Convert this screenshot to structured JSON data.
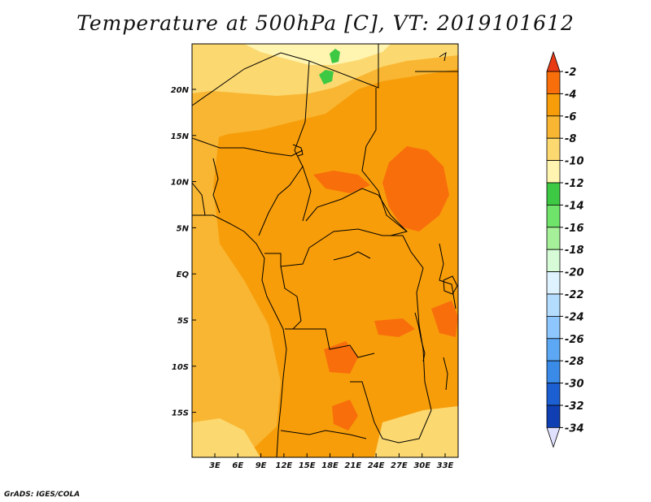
{
  "title": "Temperature at 500hPa [C], VT: 2019101612",
  "credit": "GrADS: IGES/COLA",
  "map": {
    "lon_labels": [
      "3E",
      "6E",
      "9E",
      "12E",
      "15E",
      "18E",
      "21E",
      "24E",
      "27E",
      "30E",
      "33E"
    ],
    "lat_labels": [
      "20N",
      "15N",
      "10N",
      "5N",
      "EQ",
      "5S",
      "10S",
      "15S"
    ]
  },
  "colorbar": {
    "labels": [
      "-2",
      "-4",
      "-6",
      "-8",
      "-10",
      "-12",
      "-14",
      "-16",
      "-18",
      "-20",
      "-22",
      "-24",
      "-26",
      "-28",
      "-30",
      "-32",
      "-34"
    ],
    "colors": [
      "#e83a14",
      "#f86e0b",
      "#f79d0a",
      "#f9b632",
      "#fcd870",
      "#fff5b0",
      "#3dc944",
      "#6fe36a",
      "#a6f09a",
      "#d7fbd6",
      "#dff2ff",
      "#b3dcff",
      "#8ec7ff",
      "#5ca8f5",
      "#3a8ae8",
      "#1b5fd2",
      "#0f3fb2",
      "#071b80",
      "#e0e0ff"
    ]
  }
}
